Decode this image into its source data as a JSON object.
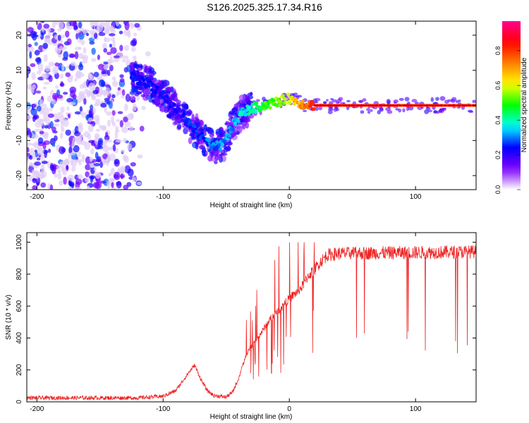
{
  "title": "S126.2025.325.17.34.R16",
  "chart_data": [
    {
      "type": "heatmap",
      "xlabel": "Height of straight line (km)",
      "ylabel": "Frequency (Hz)",
      "xlim": [
        -208,
        148
      ],
      "ylim": [
        -24,
        24
      ],
      "xticks": [
        -200,
        -100,
        0,
        100
      ],
      "yticks": [
        -20,
        -10,
        0,
        10,
        20
      ],
      "colorbar": {
        "label": "Normalized spectral amplitude",
        "range": [
          0,
          1
        ],
        "ticks": [
          0,
          0.2,
          0.4,
          0.6,
          0.8
        ],
        "tick_labels": [
          "0.0",
          "0.2",
          "0.4",
          "0.6",
          "0.8"
        ],
        "colors": [
          "#ffffff",
          "#7f00ff",
          "#0000ff",
          "#00ffff",
          "#00ff00",
          "#ffff00",
          "#ff7f00",
          "#ff0000",
          "#ff0090"
        ]
      },
      "ridge": {
        "x": [
          -125,
          -110,
          -100,
          -90,
          -80,
          -70,
          -60,
          -52,
          -45,
          -38,
          -30,
          -20,
          -10,
          0,
          10,
          20,
          148
        ],
        "y": [
          8,
          6,
          3,
          -1,
          -5,
          -9,
          -12,
          -11,
          -6,
          -2,
          -1,
          0,
          1,
          2,
          0.5,
          0,
          0
        ],
        "amplitude_x": [
          -125,
          -90,
          -60,
          -40,
          -20,
          0,
          20,
          148
        ],
        "amplitude": [
          0.25,
          0.2,
          0.3,
          0.35,
          0.5,
          0.6,
          0.85,
          0.85
        ]
      },
      "scatter_region": {
        "x": [
          -208,
          -110
        ],
        "y": [
          -24,
          24
        ],
        "amplitude": [
          0.05,
          0.3
        ]
      }
    },
    {
      "type": "line",
      "xlabel": "Height of straight line (km)",
      "ylabel": "SNR (10 * v/v)",
      "xlim": [
        -208,
        148
      ],
      "ylim": [
        0,
        1060
      ],
      "xticks": [
        -200,
        -100,
        0,
        100
      ],
      "yticks": [
        0,
        200,
        400,
        600,
        800,
        1000
      ],
      "color": "#ee2222",
      "envelope": {
        "x": [
          -208,
          -120,
          -100,
          -90,
          -80,
          -75,
          -70,
          -65,
          -60,
          -50,
          -45,
          -40,
          -35,
          -30,
          -25,
          -20,
          -15,
          -10,
          -5,
          0,
          5,
          10,
          15,
          20,
          25,
          30,
          40,
          148
        ],
        "y": [
          25,
          25,
          35,
          70,
          180,
          230,
          140,
          70,
          40,
          30,
          60,
          150,
          280,
          350,
          400,
          460,
          520,
          560,
          600,
          650,
          680,
          720,
          790,
          830,
          880,
          920,
          930,
          940
        ]
      },
      "dropouts": {
        "start_km": 50,
        "end_km": 148,
        "fraction": 0.12,
        "low_range": [
          300,
          450
        ]
      },
      "spikes_region_km": [
        -40,
        20
      ]
    }
  ]
}
